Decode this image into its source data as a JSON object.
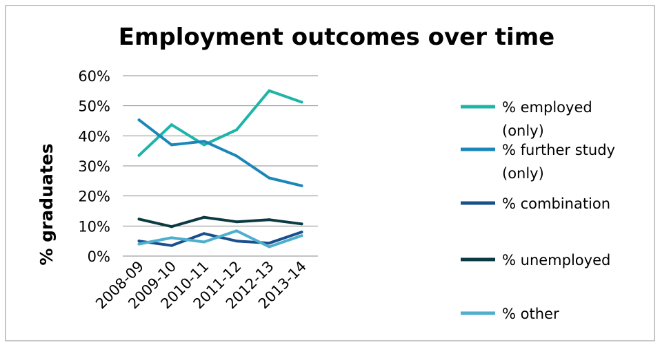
{
  "chart_data": {
    "type": "line",
    "title": "Employment outcomes over time",
    "xlabel": "",
    "ylabel": "% graduates",
    "categories": [
      "2008-09",
      "2009-10",
      "2010-11",
      "2011-12",
      "2012-13",
      "2013-14"
    ],
    "y_ticks": [
      "0%",
      "10%",
      "20%",
      "30%",
      "40%",
      "50%",
      "60%"
    ],
    "ylim": [
      0,
      60
    ],
    "grid": true,
    "legend_position": "right",
    "series": [
      {
        "name": "% employed (only)",
        "name_lines": [
          "% employed",
          "(only)"
        ],
        "color": "#1CB5A8",
        "values": [
          33.5,
          43.7,
          37,
          42,
          55,
          51.2
        ]
      },
      {
        "name": "% further study (only)",
        "name_lines": [
          "% further study",
          "(only)"
        ],
        "color": "#1C86B8",
        "values": [
          45.3,
          37,
          38.2,
          33.3,
          26,
          23.4
        ]
      },
      {
        "name": "% combination",
        "name_lines": [
          "% combination"
        ],
        "color": "#1A4F8B",
        "values": [
          5,
          3.5,
          7.5,
          5,
          4.3,
          8
        ]
      },
      {
        "name": "% unemployed",
        "name_lines": [
          "% unemployed"
        ],
        "color": "#0B3A42",
        "values": [
          12.3,
          9.8,
          12.9,
          11.4,
          12.1,
          10.7
        ]
      },
      {
        "name": "% other",
        "name_lines": [
          "% other"
        ],
        "color": "#4EAECE",
        "values": [
          4,
          6.1,
          4.7,
          8.4,
          3.1,
          6.8
        ]
      }
    ]
  }
}
